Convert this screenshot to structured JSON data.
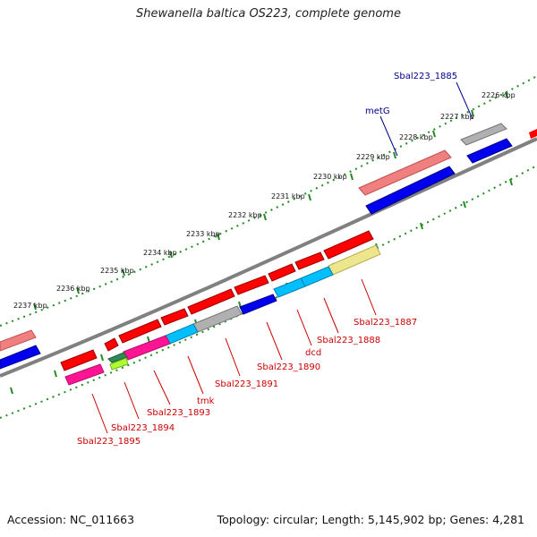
{
  "title": "Shewanella baltica OS223, complete genome",
  "footer": {
    "accession": "Accession: NC_011663",
    "topology": "Topology: circular; Length: 5,145,902 bp; Genes: 4,281"
  },
  "ticks": [
    "2226 kbp",
    "2227 kbp",
    "2228 kbp",
    "2229 kbp",
    "2230 kbp",
    "2231 kbp",
    "2232 kbp",
    "2233 kbp",
    "2234 kbp",
    "2235 kbp",
    "2236 kbp",
    "2237 kbp"
  ],
  "gene_labels_top": [
    "Sbal223_1885",
    "metG"
  ],
  "gene_labels_bottom": [
    "Sbal223_1887",
    "Sbal223_1888",
    "dcd",
    "Sbal223_1890",
    "Sbal223_1891",
    "tmk",
    "Sbal223_1893",
    "Sbal223_1894",
    "Sbal223_1895"
  ],
  "colors": {
    "red": "#ff0000",
    "salmon": "#f08080",
    "blue": "#0000ee",
    "cyan": "#00bfff",
    "grey": "#b0b0b0",
    "khaki": "#eee68c",
    "magenta": "#ff1493",
    "green": "#2e8b57",
    "yellowgreen": "#adff2f",
    "backbone": "#808080",
    "gc_dots": "#228b22"
  }
}
